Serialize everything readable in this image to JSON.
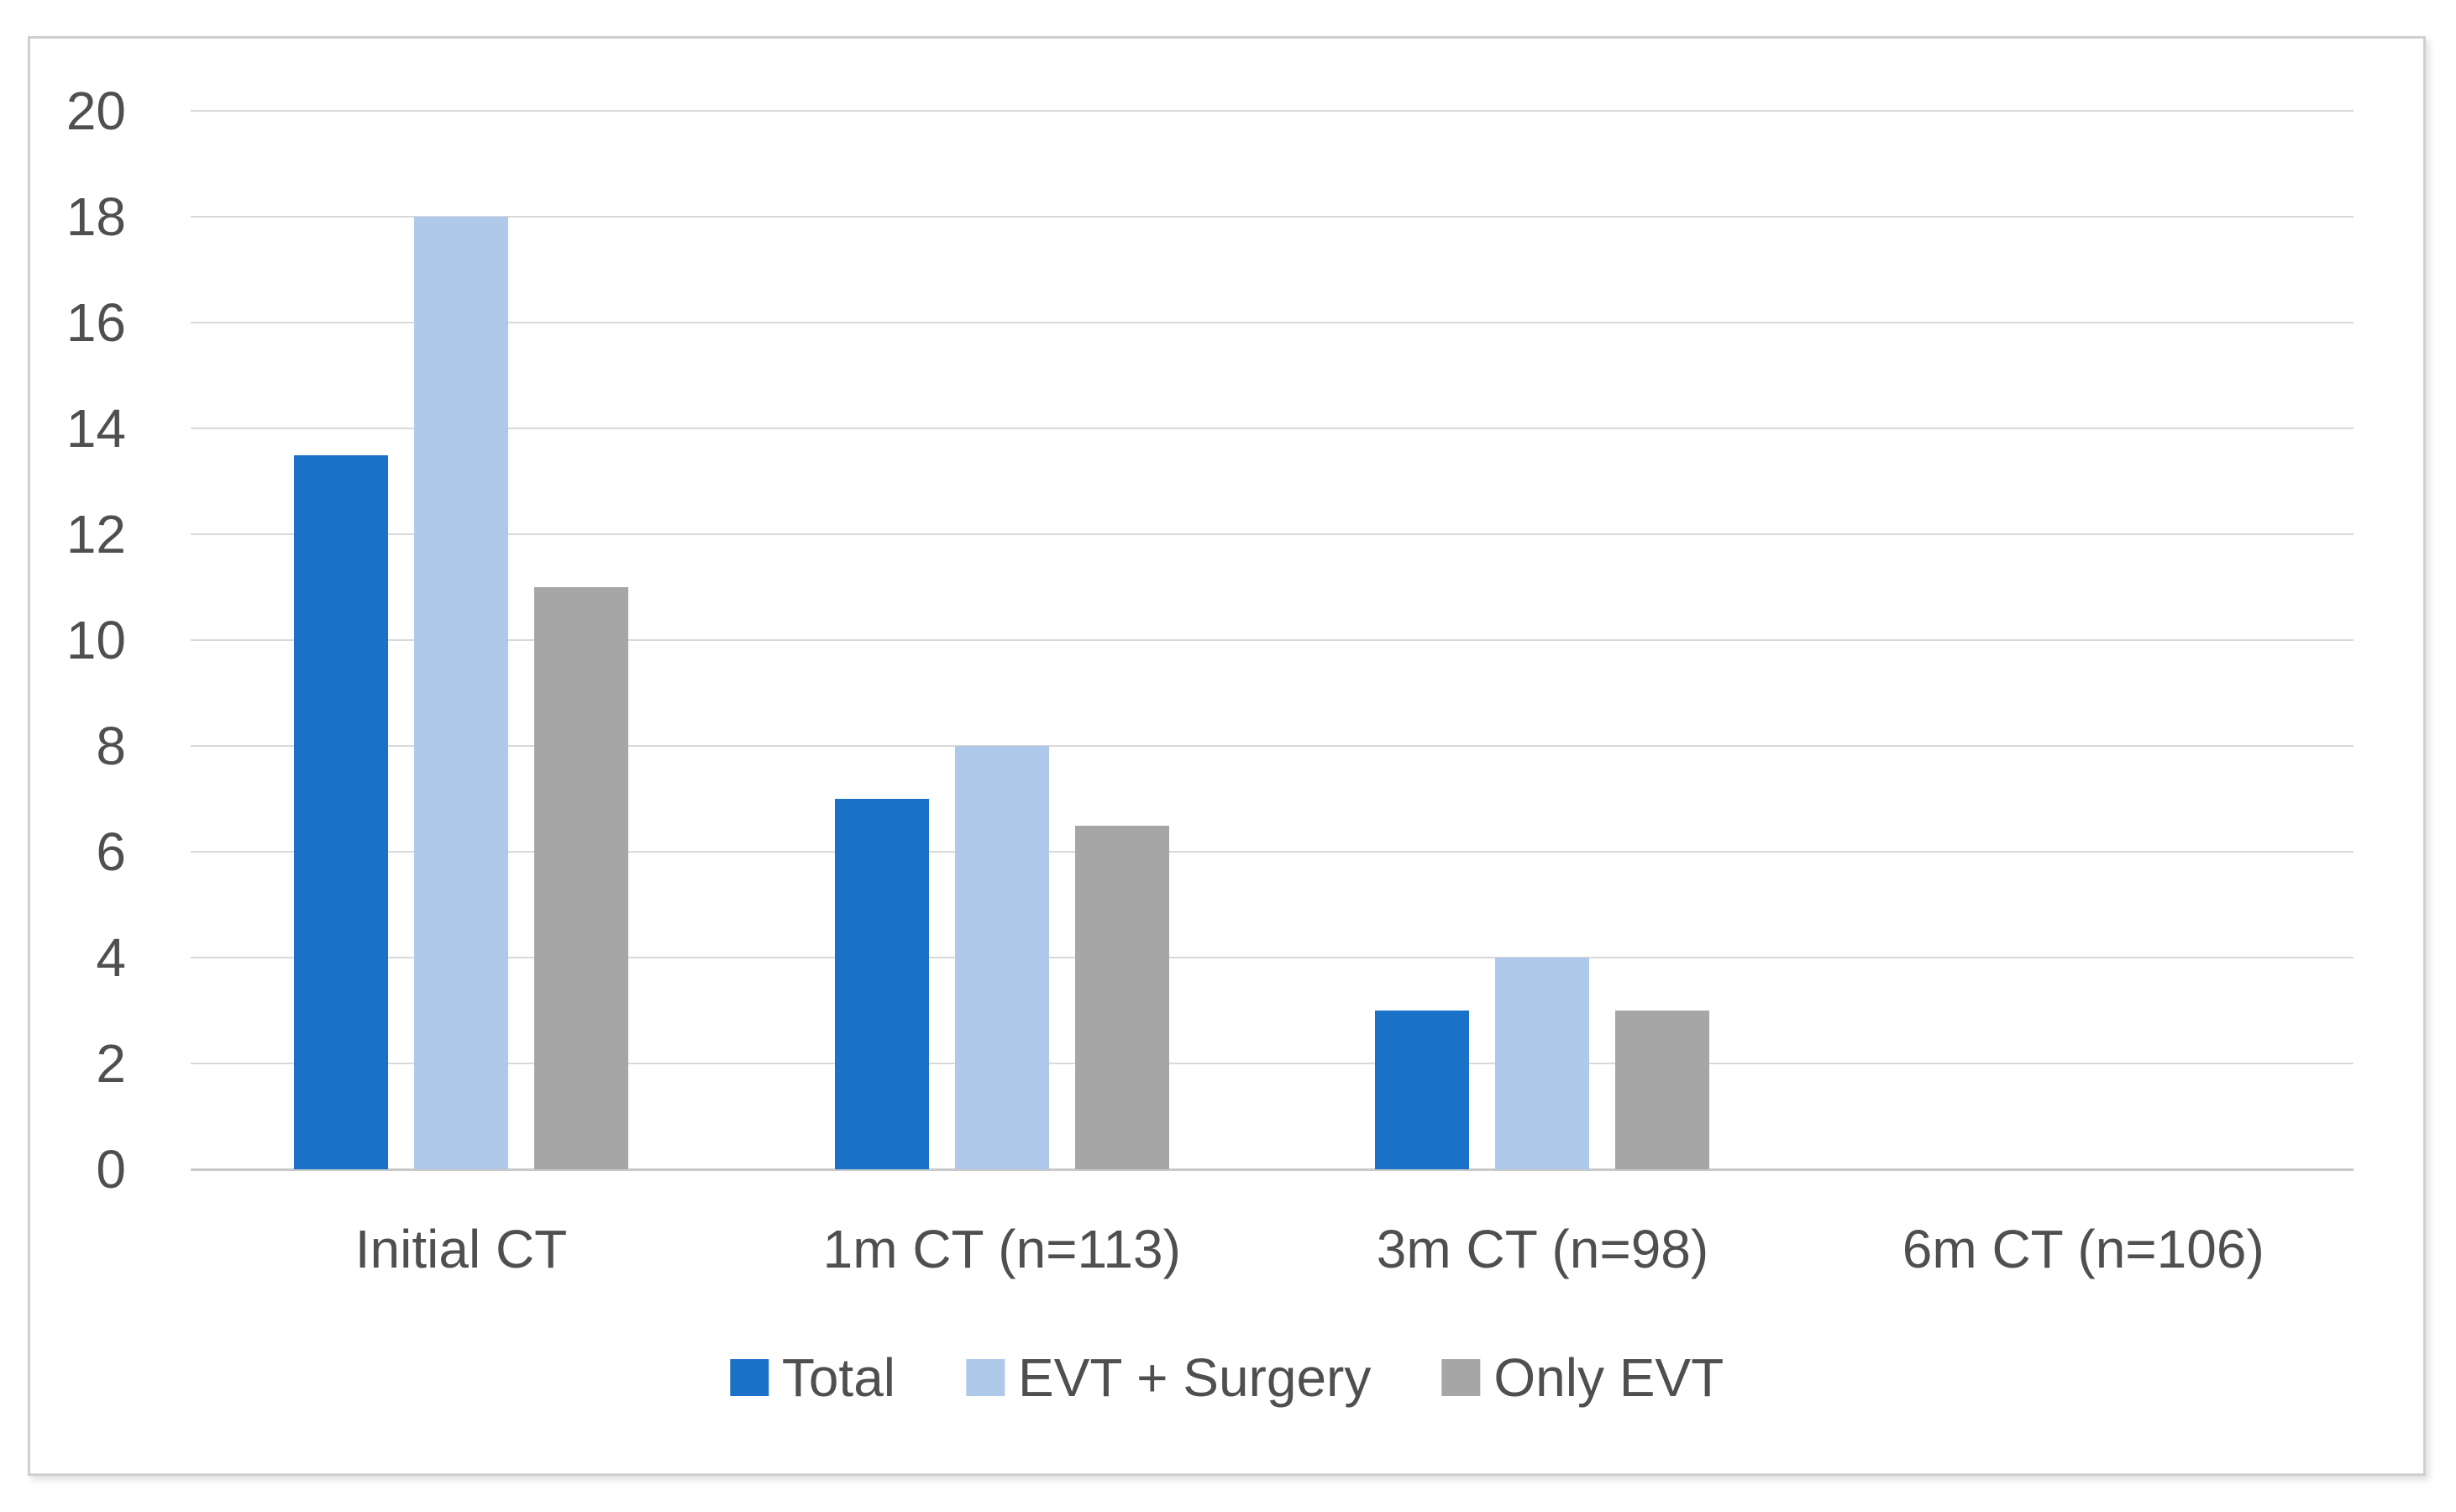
{
  "figure": {
    "background": "#ffffff",
    "frame_border_color": "#cdd0d3"
  },
  "chart_data": {
    "type": "bar",
    "title": "",
    "categories": [
      "Initial CT",
      "1m CT (n=113)",
      "3m CT (n=98)",
      "6m CT (n=106)"
    ],
    "series": [
      {
        "name": "Total",
        "color": "#1B71C8",
        "values": [
          13.5,
          7,
          3,
          0
        ]
      },
      {
        "name": "EVT + Surgery",
        "color": "#AEC9EA",
        "values": [
          18,
          8,
          4,
          0
        ]
      },
      {
        "name": "Only EVT",
        "color": "#A6A6A6",
        "values": [
          11,
          6.5,
          3,
          0
        ]
      }
    ],
    "xlabel": "",
    "ylabel": "",
    "ylim": [
      0,
      20
    ],
    "y_ticks": [
      0,
      2,
      4,
      6,
      8,
      10,
      12,
      14,
      16,
      18,
      20
    ],
    "y_tick_labels": [
      "0",
      "2",
      "4",
      "6",
      "8",
      "10",
      "12",
      "14",
      "16",
      "18",
      "20"
    ],
    "grid": true,
    "gridline_color": "#D9D9D9",
    "axis_line_color": "#C9C9C9",
    "text_color": "#4F4F4F",
    "legend_position": "bottom",
    "legend_labels": [
      "Total",
      "EVT + Surgery",
      "Only EVT"
    ]
  }
}
